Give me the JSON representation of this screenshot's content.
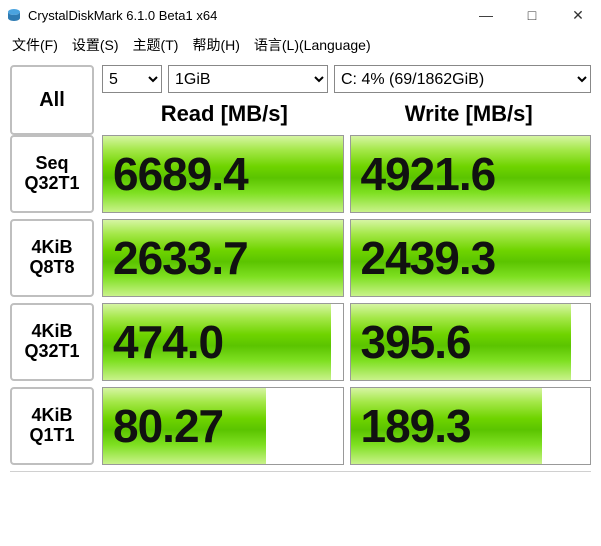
{
  "window": {
    "title": "CrystalDiskMark 6.1.0 Beta1 x64",
    "minimize_glyph": "—",
    "maximize_glyph": "□",
    "close_glyph": "✕"
  },
  "menu": {
    "file": "文件(F)",
    "settings": "设置(S)",
    "theme": "主题(T)",
    "help": "帮助(H)",
    "language": "语言(L)(Language)"
  },
  "controls": {
    "all_label": "All",
    "count_value": "5",
    "size_value": "1GiB",
    "drive_value": "C: 4% (69/1862GiB)",
    "read_header": "Read [MB/s]",
    "write_header": "Write [MB/s]"
  },
  "rows": [
    {
      "label1": "Seq",
      "label2": "Q32T1",
      "read": "6689.4",
      "write": "4921.6",
      "read_pct": 100,
      "write_pct": 100
    },
    {
      "label1": "4KiB",
      "label2": "Q8T8",
      "read": "2633.7",
      "write": "2439.3",
      "read_pct": 100,
      "write_pct": 100
    },
    {
      "label1": "4KiB",
      "label2": "Q32T1",
      "read": "474.0",
      "write": "395.6",
      "read_pct": 95,
      "write_pct": 92
    },
    {
      "label1": "4KiB",
      "label2": "Q1T1",
      "read": "80.27",
      "write": "189.3",
      "read_pct": 68,
      "write_pct": 80
    }
  ],
  "colors": {
    "border": "#bfbfbf",
    "cell_border": "#999999",
    "bar_gradient": [
      "#d6f5a3",
      "#a5e84a",
      "#6fd400",
      "#5bc400",
      "#7fe022",
      "#c9f28a"
    ],
    "text": "#111111",
    "background": "#ffffff"
  },
  "fonts": {
    "value_size_pt": 34,
    "header_size_pt": 16,
    "rowlabel_size_pt": 13,
    "menu_size_pt": 11
  }
}
